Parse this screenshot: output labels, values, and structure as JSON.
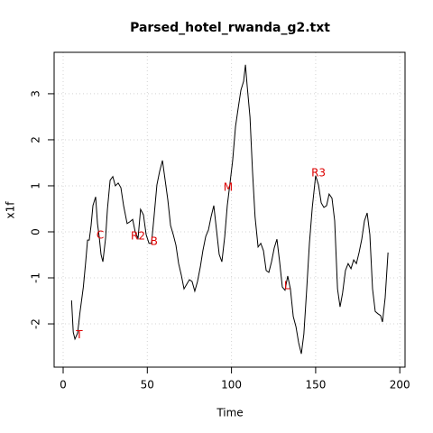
{
  "chart_data": {
    "type": "line",
    "title": "Parsed_hotel_rwanda_g2.txt",
    "xlabel": "Time",
    "ylabel": "x1f",
    "x": [
      5,
      6,
      7,
      8.6,
      10,
      12,
      13.4,
      14.5,
      15.5,
      16.6,
      17.7,
      19.3,
      20.4,
      21.4,
      22.5,
      23.6,
      25.2,
      26.3,
      27.9,
      29.5,
      31,
      32.7,
      34.3,
      35.9,
      38,
      39.7,
      41.3,
      42.9,
      44.5,
      46,
      47.7,
      49.3,
      51,
      52.5,
      54,
      55.7,
      57.3,
      59,
      60.6,
      62.2,
      63.8,
      65.4,
      67,
      68.6,
      70.2,
      71.8,
      73.4,
      75,
      76.6,
      78.2,
      79.8,
      81.5,
      83,
      84.7,
      86.3,
      87.9,
      89.5,
      91.1,
      92.7,
      94.3,
      96,
      97.5,
      99,
      100.7,
      102.4,
      104,
      105.6,
      107.2,
      108.3,
      109.3,
      111,
      112.5,
      114,
      115.8,
      117.4,
      119,
      120.6,
      122.2,
      123.8,
      125.4,
      127,
      128.6,
      130.2,
      131.8,
      133.4,
      135,
      136.7,
      138.3,
      139.9,
      141.5,
      143,
      144.7,
      146.3,
      148,
      150,
      151.7,
      153.3,
      154.9,
      156.5,
      158,
      159.7,
      161.3,
      163,
      164.5,
      166,
      167.7,
      169.3,
      171,
      172.6,
      174.2,
      175.8,
      177.4,
      179,
      180.6,
      182.2,
      183.8,
      185.4,
      187,
      188.6,
      189.7,
      191.3,
      193
    ],
    "series": [
      {
        "name": "x1f",
        "color": "#000000",
        "values": [
          -1.49,
          -2.18,
          -2.33,
          -2.2,
          -1.75,
          -1.2,
          -0.65,
          -0.18,
          -0.18,
          0.14,
          0.57,
          0.76,
          0.18,
          -0.1,
          -0.49,
          -0.65,
          -0.14,
          0.49,
          1.12,
          1.2,
          1.0,
          1.06,
          0.96,
          0.57,
          0.18,
          0.22,
          0.27,
          -0.02,
          -0.14,
          0.49,
          0.37,
          -0.06,
          -0.25,
          -0.25,
          0.33,
          1.02,
          1.31,
          1.55,
          1.12,
          0.69,
          0.14,
          -0.06,
          -0.29,
          -0.69,
          -0.94,
          -1.24,
          -1.14,
          -1.04,
          -1.08,
          -1.29,
          -1.08,
          -0.76,
          -0.41,
          -0.1,
          0.04,
          0.33,
          0.57,
          0.04,
          -0.49,
          -0.65,
          -0.1,
          0.57,
          1.02,
          1.55,
          2.29,
          2.69,
          3.08,
          3.27,
          3.63,
          3.18,
          2.49,
          1.31,
          0.33,
          -0.33,
          -0.25,
          -0.41,
          -0.84,
          -0.88,
          -0.65,
          -0.35,
          -0.16,
          -0.65,
          -1.2,
          -1.27,
          -0.96,
          -1.24,
          -1.84,
          -2.06,
          -2.41,
          -2.65,
          -2.22,
          -1.24,
          -0.25,
          0.53,
          1.22,
          1.02,
          0.63,
          0.53,
          0.57,
          0.82,
          0.73,
          0.24,
          -1.24,
          -1.63,
          -1.33,
          -0.84,
          -0.69,
          -0.8,
          -0.61,
          -0.69,
          -0.45,
          -0.16,
          0.24,
          0.41,
          -0.06,
          -1.24,
          -1.73,
          -1.78,
          -1.82,
          -1.96,
          -1.43,
          -0.45
        ]
      }
    ],
    "annotations": [
      {
        "label": "T",
        "x": 9.6,
        "y": -2.24
      },
      {
        "label": "C",
        "x": 22,
        "y": -0.08
      },
      {
        "label": "R2",
        "x": 44.5,
        "y": -0.1
      },
      {
        "label": "B",
        "x": 54,
        "y": -0.22
      },
      {
        "label": "M",
        "x": 98,
        "y": 0.96
      },
      {
        "label": "L",
        "x": 133,
        "y": -1.18
      },
      {
        "label": "R3",
        "x": 151.7,
        "y": 1.27
      }
    ],
    "annotation_color": "#dd0000",
    "xlim": [
      -5.36,
      203.1
    ],
    "ylim": [
      -2.94,
      3.9
    ],
    "xticks": [
      0,
      50,
      100,
      150,
      200
    ],
    "yticks": [
      -2,
      -1,
      0,
      1,
      2,
      3
    ],
    "grid": true
  }
}
